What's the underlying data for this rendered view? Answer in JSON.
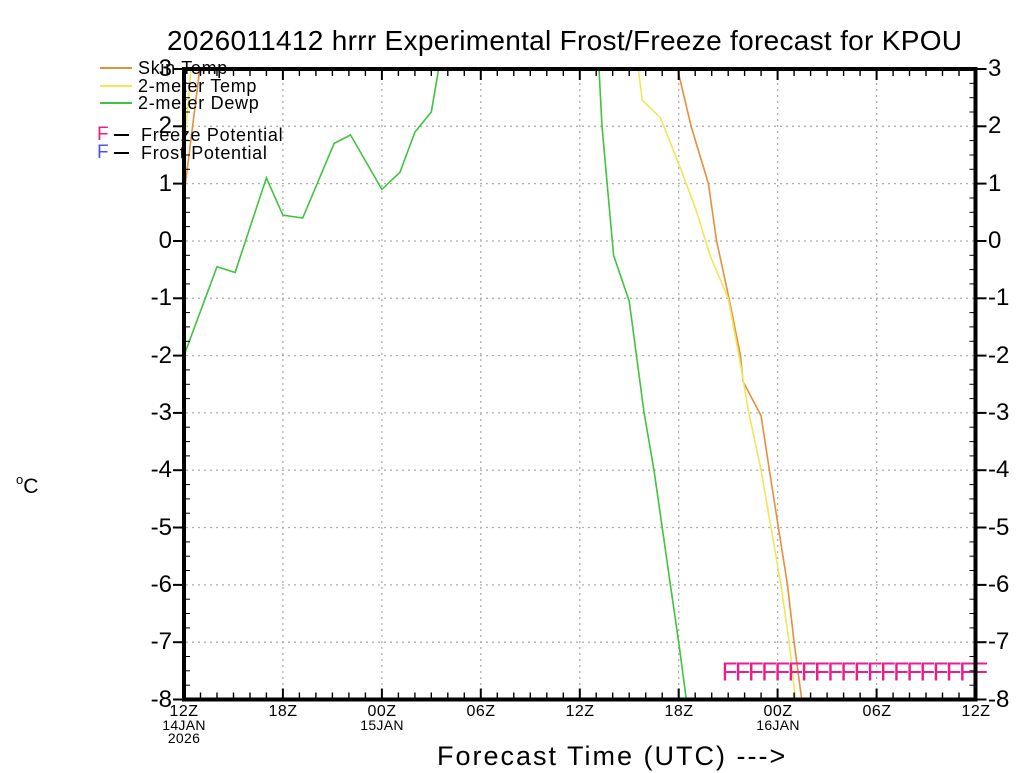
{
  "title": "2026011412 hrrr Experimental Frost/Freeze forecast for KPOU",
  "legend": {
    "series": [
      {
        "label": "Skin Temp",
        "color": "#E78F3C"
      },
      {
        "label": "2-meter Temp",
        "color": "#EFE75A"
      },
      {
        "label": "2-meter Dewp",
        "color": "#3FC43F"
      }
    ],
    "flags": [
      {
        "symbol": "F",
        "label": "Freeze Potential",
        "color": "#EB1C8C"
      },
      {
        "symbol": "F",
        "label": "Frost Potential",
        "color": "#4A55E0"
      }
    ]
  },
  "axes": {
    "ylabel_sup": "o",
    "ylabel_main": "C",
    "xlabel": "Forecast Time (UTC) --->"
  },
  "chart_data": {
    "type": "line",
    "title": "2026011412 hrrr Experimental Frost/Freeze forecast for KPOU",
    "xlabel": "Forecast Time (UTC) --->",
    "ylabel": "°C",
    "x_unit": "hours since 12Z 14 Jan 2026",
    "xlim": [
      0,
      48
    ],
    "ylim": [
      -8,
      3
    ],
    "grid": "dotted; vertical every 6 h, horizontal every 1 °C",
    "legend_position": "top-left, overlapping plot",
    "y_ticks": [
      3,
      2,
      1,
      0,
      -1,
      -2,
      -3,
      -4,
      -5,
      -6,
      -7,
      -8
    ],
    "x_ticks": [
      {
        "hour": 0,
        "label": "12Z",
        "date": "14JAN",
        "year": "2026"
      },
      {
        "hour": 6,
        "label": "18Z"
      },
      {
        "hour": 12,
        "label": "00Z",
        "date": "15JAN"
      },
      {
        "hour": 18,
        "label": "06Z"
      },
      {
        "hour": 24,
        "label": "12Z"
      },
      {
        "hour": 30,
        "label": "18Z"
      },
      {
        "hour": 36,
        "label": "00Z",
        "date": "16JAN"
      },
      {
        "hour": 42,
        "label": "06Z"
      },
      {
        "hour": 48,
        "label": "12Z"
      }
    ],
    "series": [
      {
        "name": "Skin Temp",
        "color": "#E78F3C",
        "points": [
          [
            0,
            0.8
          ],
          [
            1,
            3.1
          ],
          [
            1.3,
            5
          ],
          [
            29.3,
            5
          ],
          [
            29.85,
            3.1
          ],
          [
            30.75,
            2.0
          ],
          [
            31.8,
            1.0
          ],
          [
            32.3,
            0.0
          ],
          [
            33.05,
            -1.0
          ],
          [
            33.75,
            -2.0
          ],
          [
            33.9,
            -2.45
          ],
          [
            35.0,
            -3.05
          ],
          [
            35.5,
            -4.0
          ],
          [
            36.05,
            -5.0
          ],
          [
            36.6,
            -6.0
          ],
          [
            37.0,
            -7.0
          ],
          [
            37.6,
            -8.3
          ]
        ]
      },
      {
        "name": "2-meter Temp",
        "color": "#EFE75A",
        "points": [
          [
            0,
            1.6
          ],
          [
            0.46,
            3.1
          ],
          [
            0.7,
            6
          ],
          [
            27.1,
            6
          ],
          [
            27.5,
            3.1
          ],
          [
            27.8,
            2.45
          ],
          [
            28.9,
            2.15
          ],
          [
            30.2,
            1.2
          ],
          [
            31.1,
            0.5
          ],
          [
            31.9,
            -0.25
          ],
          [
            33.0,
            -1.0
          ],
          [
            33.65,
            -2.0
          ],
          [
            34.25,
            -3.0
          ],
          [
            35.0,
            -4.0
          ],
          [
            35.6,
            -5.0
          ],
          [
            36.2,
            -6.0
          ],
          [
            36.7,
            -7.0
          ],
          [
            37.2,
            -8.3
          ]
        ]
      },
      {
        "name": "2-meter Dewp",
        "color": "#3FC43F",
        "points": [
          [
            0,
            -2.0
          ],
          [
            2,
            -0.45
          ],
          [
            3.1,
            -0.55
          ],
          [
            5,
            1.1
          ],
          [
            6,
            0.45
          ],
          [
            7.2,
            0.4
          ],
          [
            9.1,
            1.7
          ],
          [
            10.1,
            1.85
          ],
          [
            12,
            0.9
          ],
          [
            13.1,
            1.2
          ],
          [
            14,
            1.9
          ],
          [
            15,
            2.25
          ],
          [
            15.5,
            3.1
          ],
          [
            15.8,
            5
          ],
          [
            24.8,
            5
          ],
          [
            25.15,
            3.1
          ],
          [
            25.35,
            2.0
          ],
          [
            26.05,
            -0.25
          ],
          [
            27,
            -1.05
          ],
          [
            27.9,
            -3.0
          ],
          [
            28.5,
            -4.0
          ],
          [
            29,
            -5.0
          ],
          [
            29.5,
            -6.0
          ],
          [
            30,
            -7.0
          ],
          [
            30.6,
            -8.3
          ]
        ]
      }
    ],
    "freeze_flags": {
      "symbol": "F",
      "color": "#EB1C8C",
      "count": 20,
      "start_hour": 32.6,
      "spacing_hours": 0.8,
      "value": -7.5
    },
    "grid_color": "#AFAFAF"
  }
}
